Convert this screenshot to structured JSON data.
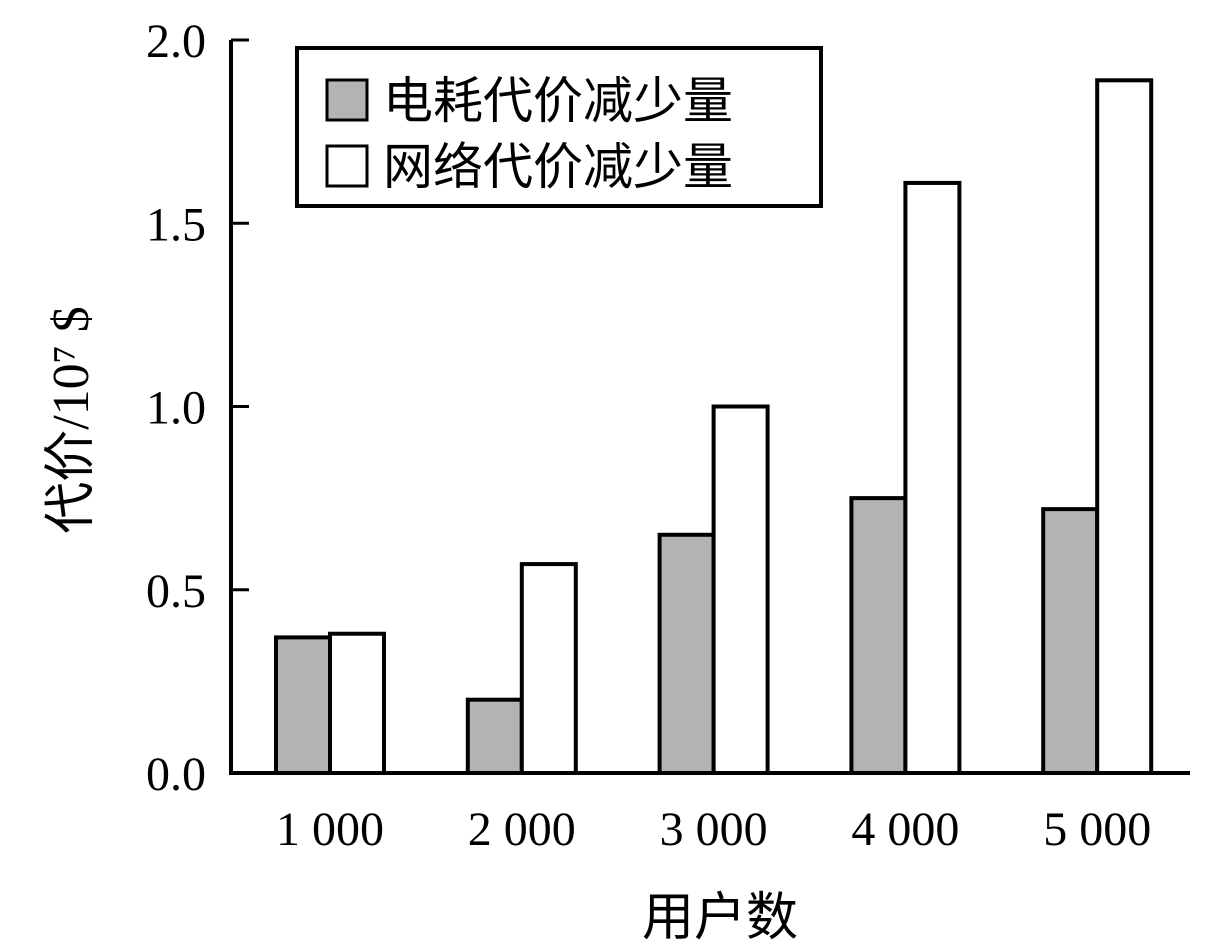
{
  "chart_data": {
    "type": "bar",
    "title": "",
    "xlabel": "用户数",
    "ylabel": "代价/10⁷ $",
    "categories": [
      "1 000",
      "2 000",
      "3 000",
      "4 000",
      "5 000"
    ],
    "series": [
      {
        "name": "电耗代价减少量",
        "values": [
          0.37,
          0.2,
          0.65,
          0.75,
          0.72
        ],
        "color": "#b3b3b3"
      },
      {
        "name": "网络代价减少量",
        "values": [
          0.38,
          0.57,
          1.0,
          1.61,
          1.89
        ],
        "color": "#ffffff"
      }
    ],
    "ylim": [
      0,
      2.0
    ],
    "yticks": [
      "0.0",
      "0.5",
      "1.0",
      "1.5",
      "2.0"
    ],
    "grid": false,
    "legend_position": "top-left"
  }
}
